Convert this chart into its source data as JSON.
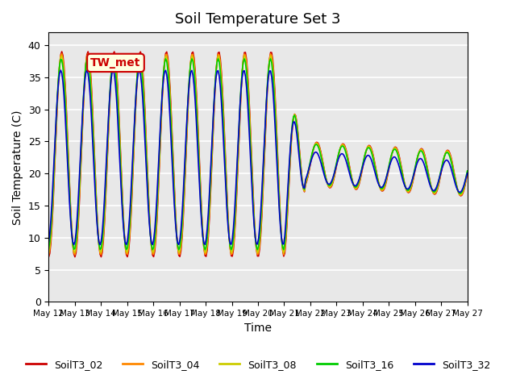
{
  "title": "Soil Temperature Set 3",
  "xlabel": "Time",
  "ylabel": "Soil Temperature (C)",
  "ylim": [
    0,
    42
  ],
  "series_colors": {
    "SoilT3_02": "#cc0000",
    "SoilT3_04": "#ff8800",
    "SoilT3_08": "#cccc00",
    "SoilT3_16": "#00cc00",
    "SoilT3_32": "#0000cc"
  },
  "annotation_text": "TW_met",
  "plot_bg_color": "#e8e8e8",
  "yticks": [
    0,
    5,
    10,
    15,
    20,
    25,
    30,
    35,
    40
  ],
  "x_labels": [
    "May 12",
    "May 13",
    "May 14",
    "May 15",
    "May 16",
    "May 17",
    "May 18",
    "May 19",
    "May 20",
    "May 21",
    "May 22",
    "May 23",
    "May 24",
    "May 25",
    "May 26",
    "May 27",
    "May 27"
  ]
}
